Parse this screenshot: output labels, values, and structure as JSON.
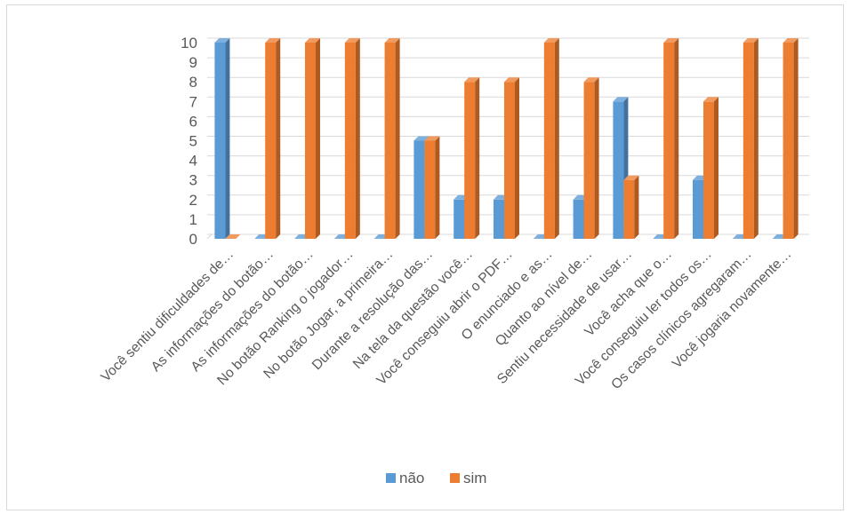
{
  "chart_data": {
    "type": "bar",
    "categories": [
      "Você sentiu dificuldades de…",
      "As informações do botão…",
      "As informações do botão…",
      "No botão Ranking o jogador…",
      "No botão Jogar, a primeira…",
      "Durante a resolução das…",
      "Na tela da questão você…",
      "Você conseguiu abrir o PDF…",
      "O enunciado e as…",
      "Quanto ao nível de…",
      "Sentiu necessidade de usar…",
      "Você acha que o…",
      "Você conseguiu ler todos os…",
      "Os casos clínicos agregaram…",
      "Você jogaria novamente…"
    ],
    "series": [
      {
        "name": "não",
        "color": "#5b9bd5",
        "values": [
          10,
          0,
          0,
          0,
          0,
          5,
          2,
          2,
          0,
          2,
          7,
          0,
          3,
          0,
          0
        ]
      },
      {
        "name": "sim",
        "color": "#ed7d31",
        "values": [
          0,
          10,
          10,
          10,
          10,
          5,
          8,
          8,
          10,
          8,
          3,
          10,
          7,
          10,
          10
        ]
      }
    ],
    "yticks": [
      "0",
      "1",
      "2",
      "3",
      "4",
      "5",
      "6",
      "7",
      "8",
      "9",
      "10"
    ],
    "ylim": [
      0,
      10
    ],
    "grid": true,
    "legend_position": "bottom"
  }
}
